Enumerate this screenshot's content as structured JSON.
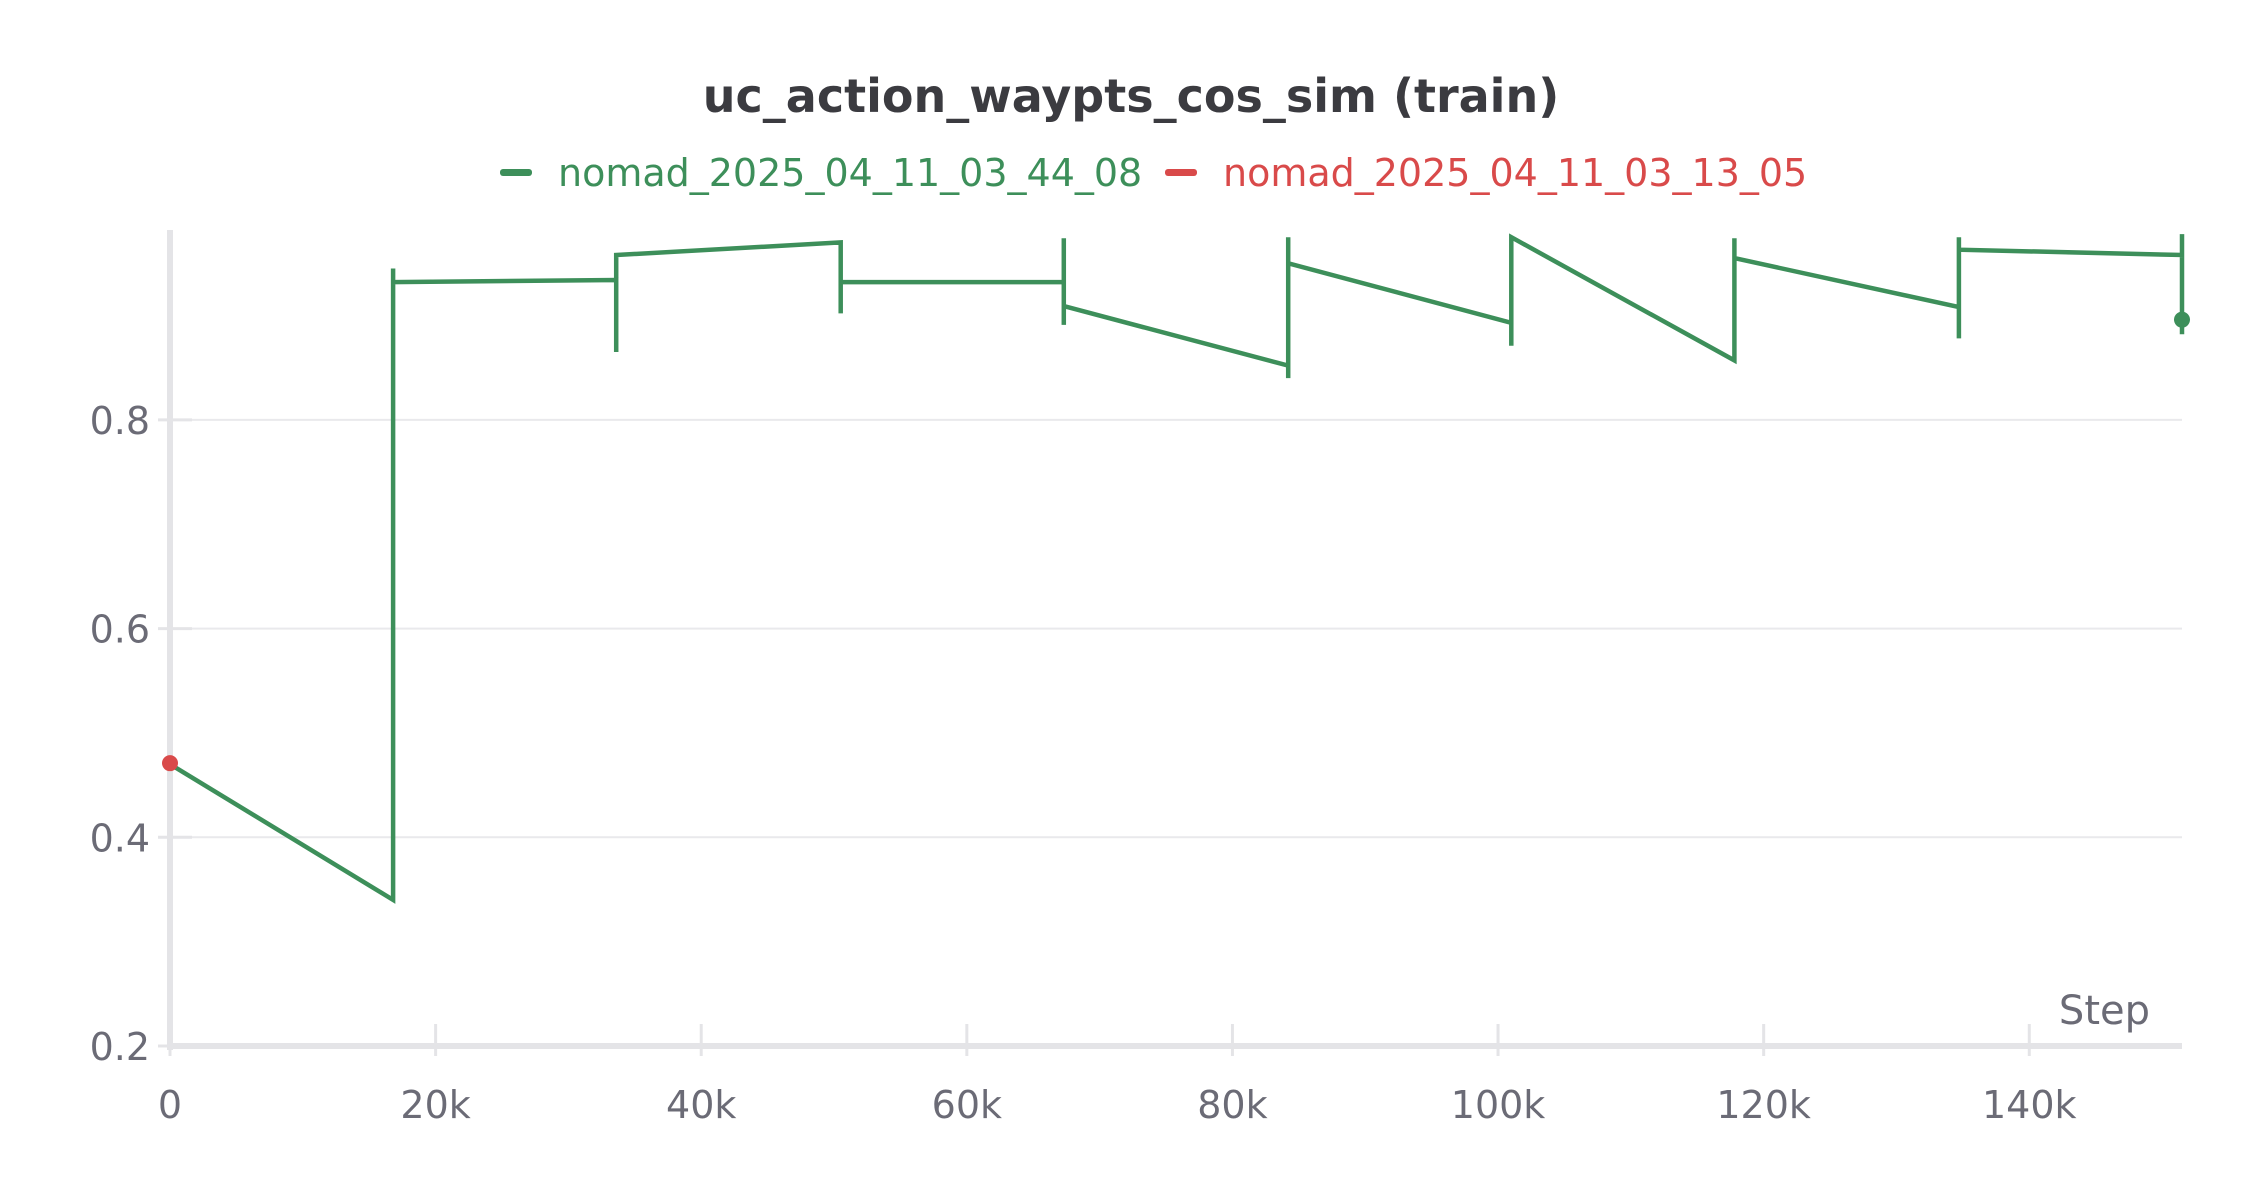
{
  "colors": {
    "series_green": "#3d8f5a",
    "series_red": "#d94a4a",
    "grid": "#e9e9ec",
    "axis": "#e4e4e7"
  },
  "chart_data": {
    "type": "line",
    "title": "uc_action_waypts_cos_sim (train)",
    "xlabel": "Step",
    "ylabel": "",
    "xlim": [
      0,
      151500
    ],
    "ylim": [
      0.2,
      0.98
    ],
    "grid": true,
    "legend_position": "top-center",
    "x_ticks": [
      {
        "value": 0,
        "label": "0"
      },
      {
        "value": 20000,
        "label": "20k"
      },
      {
        "value": 40000,
        "label": "40k"
      },
      {
        "value": 60000,
        "label": "60k"
      },
      {
        "value": 80000,
        "label": "80k"
      },
      {
        "value": 100000,
        "label": "100k"
      },
      {
        "value": 120000,
        "label": "120k"
      },
      {
        "value": 140000,
        "label": "140k"
      }
    ],
    "y_ticks": [
      {
        "value": 0.2,
        "label": "0.2"
      },
      {
        "value": 0.4,
        "label": "0.4"
      },
      {
        "value": 0.6,
        "label": "0.6"
      },
      {
        "value": 0.8,
        "label": "0.8"
      }
    ],
    "series": [
      {
        "name": "nomad_2025_04_11_03_44_08",
        "color": "#3d8f5a",
        "points": [
          [
            0,
            0.47
          ],
          [
            16800,
            0.34
          ],
          [
            16800,
            0.945
          ],
          [
            16800,
            0.932
          ],
          [
            33600,
            0.934
          ],
          [
            33600,
            0.865
          ],
          [
            33600,
            0.958
          ],
          [
            50500,
            0.97
          ],
          [
            50500,
            0.902
          ],
          [
            50500,
            0.932
          ],
          [
            67300,
            0.932
          ],
          [
            67300,
            0.974
          ],
          [
            67300,
            0.891
          ],
          [
            67300,
            0.909
          ],
          [
            84200,
            0.852
          ],
          [
            84200,
            0.84
          ],
          [
            84200,
            0.975
          ],
          [
            84200,
            0.95
          ],
          [
            101000,
            0.893
          ],
          [
            101000,
            0.871
          ],
          [
            101000,
            0.975
          ],
          [
            117800,
            0.857
          ],
          [
            117800,
            0.974
          ],
          [
            117800,
            0.955
          ],
          [
            134700,
            0.908
          ],
          [
            134700,
            0.878
          ],
          [
            134700,
            0.975
          ],
          [
            134700,
            0.963
          ],
          [
            151500,
            0.958
          ],
          [
            151500,
            0.978
          ],
          [
            151500,
            0.882
          ]
        ],
        "end_marker": [
          151500,
          0.896
        ]
      },
      {
        "name": "nomad_2025_04_11_03_13_05",
        "color": "#d94a4a",
        "points": [
          [
            0,
            0.471
          ]
        ],
        "end_marker": [
          0,
          0.471
        ]
      }
    ]
  }
}
